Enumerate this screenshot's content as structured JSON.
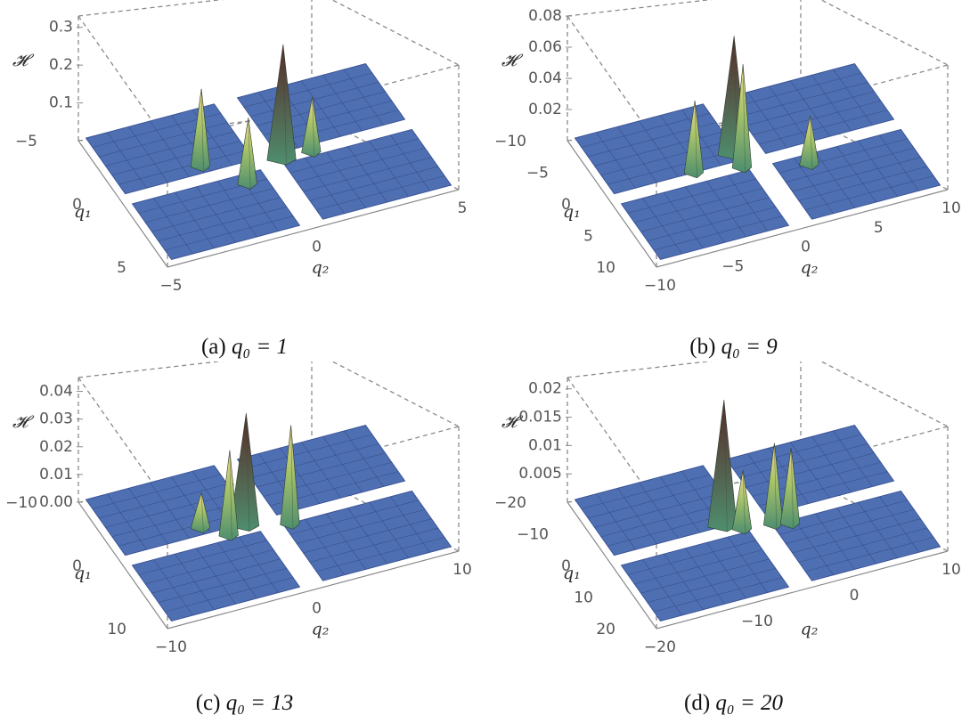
{
  "chart_data": [
    {
      "type": "surface3d",
      "panel_label": "(a)",
      "caption_math": "q₀ = 1",
      "zlabel": "𝓗",
      "xlabel": "q₂",
      "ylabel": "q₁",
      "xlim": [
        -5,
        5
      ],
      "ylim": [
        -5,
        5
      ],
      "zlim": [
        0,
        0.33
      ],
      "xticks": [
        "−5",
        "0",
        "5"
      ],
      "yticks": [
        "−5",
        "0",
        "5"
      ],
      "zticks": [
        "0.1",
        "0.2",
        "0.3"
      ],
      "zticks_values": [
        0.1,
        0.2,
        0.3
      ],
      "peaks": [
        {
          "q1": 0,
          "q2": 0.5,
          "H": 0.3
        },
        {
          "q1": 1,
          "q2": -2,
          "H": 0.2
        },
        {
          "q1": -1,
          "q2": -1,
          "H": 0.17
        },
        {
          "q1": 0,
          "q2": 1.5,
          "H": 0.14
        }
      ]
    },
    {
      "type": "surface3d",
      "panel_label": "(b)",
      "caption_math": "q₀ = 9",
      "zlabel": "𝓗",
      "xlabel": "q₂",
      "ylabel": "q₁",
      "xlim": [
        -10,
        10
      ],
      "ylim": [
        -10,
        10
      ],
      "zlim": [
        0,
        0.08
      ],
      "xticks": [
        "−10",
        "−5",
        "0",
        "5",
        "10"
      ],
      "yticks": [
        "−10",
        "−5",
        "0",
        "5",
        "10"
      ],
      "zticks": [
        "0.02",
        "0.04",
        "0.06",
        "0.08"
      ],
      "zticks_values": [
        0.02,
        0.04,
        0.06,
        0.08
      ],
      "peaks": [
        {
          "q1": 2,
          "q2": -1,
          "H": 0.075
        },
        {
          "q1": 0,
          "q2": -1,
          "H": 0.065
        },
        {
          "q1": 1,
          "q2": -4,
          "H": 0.045
        },
        {
          "q1": -2,
          "q2": 3,
          "H": 0.03
        }
      ]
    },
    {
      "type": "surface3d",
      "panel_label": "(c)",
      "caption_math": "q₀ = 13",
      "zlabel": "𝓗",
      "xlabel": "q₂",
      "ylabel": "q₁",
      "xlim": [
        -15,
        15
      ],
      "ylim": [
        -15,
        15
      ],
      "zlim": [
        0,
        0.045
      ],
      "xticks": [
        "−10",
        "0",
        "10"
      ],
      "yticks": [
        "−10",
        "0",
        "10"
      ],
      "zticks": [
        "0.00",
        "0.01",
        "0.02",
        "0.03",
        "0.04"
      ],
      "zticks_values": [
        0.0,
        0.01,
        0.02,
        0.03,
        0.04
      ],
      "peaks": [
        {
          "q1": 1,
          "q2": -2,
          "H": 0.04
        },
        {
          "q1": -1,
          "q2": 2,
          "H": 0.035
        },
        {
          "q1": 0,
          "q2": -4,
          "H": 0.03
        },
        {
          "q1": 3,
          "q2": -6,
          "H": 0.012
        }
      ]
    },
    {
      "type": "surface3d",
      "panel_label": "(d)",
      "caption_math": "q₀ = 20",
      "zlabel": "𝓗",
      "xlabel": "q₂",
      "ylabel": "q₁",
      "xlim": [
        -20,
        20
      ],
      "ylim": [
        -20,
        20
      ],
      "zlim": [
        0,
        0.022
      ],
      "xticks": [
        "−20",
        "−10",
        "0",
        "10"
      ],
      "yticks": [
        "−20",
        "−10",
        "0",
        "10",
        "20"
      ],
      "zticks": [
        "0.005",
        "0.01",
        "0.015",
        "0.02"
      ],
      "zticks_values": [
        0.005,
        0.01,
        0.015,
        0.02
      ],
      "peaks": [
        {
          "q1": 2,
          "q2": -4,
          "H": 0.022
        },
        {
          "q1": -1,
          "q2": 2,
          "H": 0.014
        },
        {
          "q1": -2,
          "q2": 4,
          "H": 0.013
        },
        {
          "q1": 0,
          "q2": -2,
          "H": 0.01
        }
      ]
    }
  ],
  "colors": {
    "surface": "#4f6fb3",
    "surface_dark": "#3c5697",
    "mesh": "#2e4478",
    "peak_top": "#f0d98c",
    "peak_mid": "#a6c36a",
    "peak_low": "#4e8e6e",
    "peak_dark": "#5a2a28",
    "box": "#8a8a8a"
  }
}
